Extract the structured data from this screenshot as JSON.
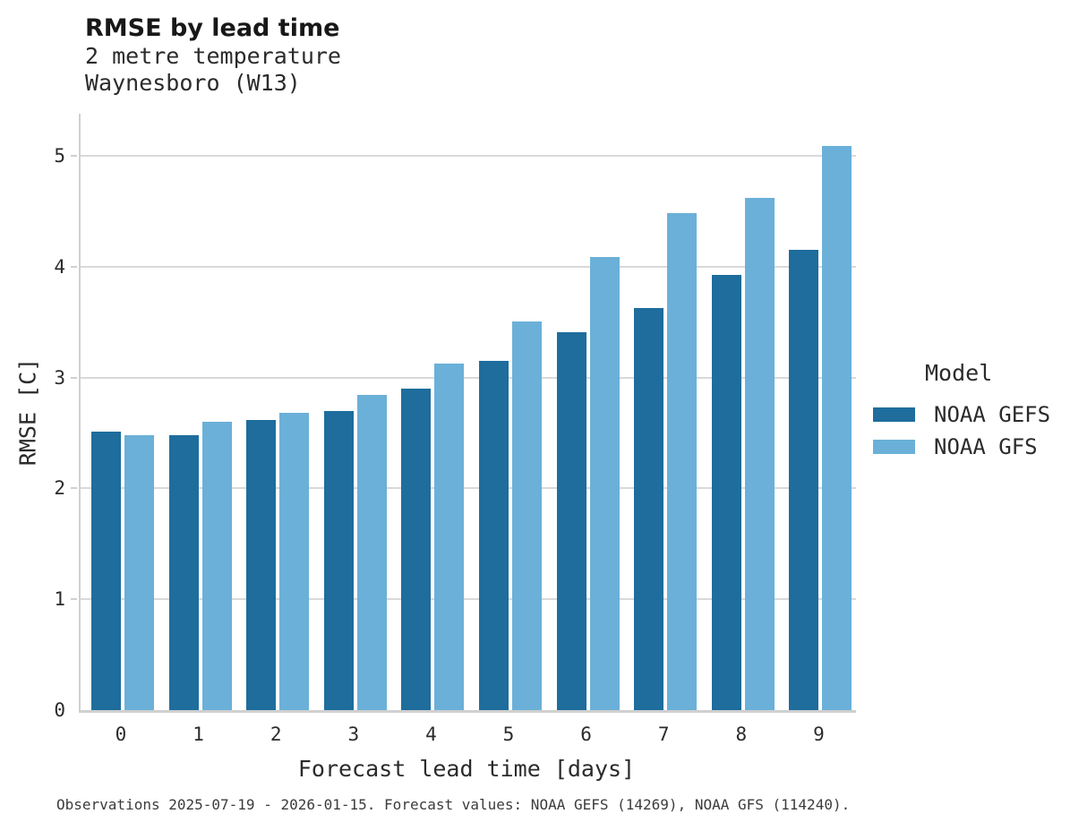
{
  "header": {
    "title": "RMSE by lead time",
    "subtitle_line1": "2 metre temperature",
    "subtitle_line2": "Waynesboro (W13)"
  },
  "chart_data": {
    "type": "bar",
    "title": "RMSE by lead time",
    "subtitle": [
      "2 metre temperature",
      "Waynesboro (W13)"
    ],
    "categories": [
      "0",
      "1",
      "2",
      "3",
      "4",
      "5",
      "6",
      "7",
      "8",
      "9"
    ],
    "series": [
      {
        "name": "NOAA GEFS",
        "color": "#1e6d9d",
        "values": [
          2.51,
          2.48,
          2.62,
          2.7,
          2.9,
          3.15,
          3.41,
          3.63,
          3.93,
          4.15
        ]
      },
      {
        "name": "NOAA GFS",
        "color": "#6bb0d8",
        "values": [
          2.48,
          2.6,
          2.68,
          2.84,
          3.13,
          3.51,
          4.09,
          4.48,
          4.62,
          5.09
        ]
      }
    ],
    "xlabel": "Forecast lead time [days]",
    "ylabel": "RMSE [C]",
    "ylim": [
      0,
      5.38
    ],
    "yticks": [
      0,
      1,
      2,
      3,
      4,
      5
    ],
    "grid": true,
    "legend_position": "right"
  },
  "legend": {
    "title": "Model"
  },
  "footer": {
    "caption": "Observations 2025-07-19 - 2026-01-15. Forecast values: NOAA GEFS (14269), NOAA GFS (114240)."
  },
  "colors": {
    "series_dark": "#1e6d9d",
    "series_light": "#6bb0d8",
    "gridline": "#d9d9d9",
    "spine": "#d0d0d0",
    "text": "#2b2b2b"
  }
}
